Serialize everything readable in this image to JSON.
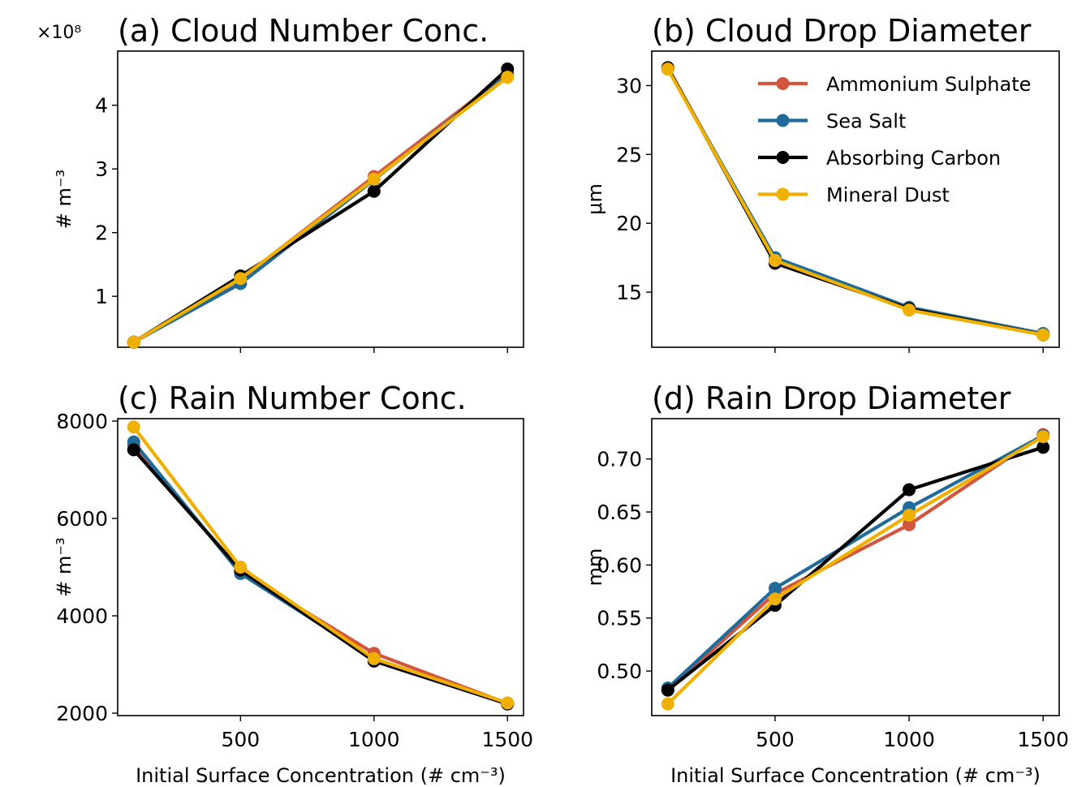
{
  "figure": {
    "colors": {
      "Ammonium Sulphate": "#d2553f",
      "Sea Salt": "#1f6b9b",
      "Absorbing Carbon": "#000000",
      "Mineral Dust": "#f0b000"
    },
    "xlabel": "Initial Surface Concentration (# cm⁻³)"
  },
  "chart_data": [
    {
      "type": "line",
      "title": "(a) Cloud Number Conc.",
      "xlabel": "",
      "ylabel": "# m⁻³",
      "multiplier_label": "×10⁸",
      "x": [
        100,
        500,
        1000,
        1500
      ],
      "xticks": [
        "500",
        "1000",
        "1500"
      ],
      "xlim": [
        40,
        1560
      ],
      "ylim": [
        0.2,
        4.85
      ],
      "yticks": [
        1,
        2,
        3,
        4
      ],
      "ytick_labels": [
        "1",
        "2",
        "3",
        "4"
      ],
      "legend": false,
      "series": [
        {
          "name": "Ammonium Sulphate",
          "values": [
            0.28,
            1.27,
            2.88,
            4.5
          ]
        },
        {
          "name": "Sea Salt",
          "values": [
            0.28,
            1.2,
            2.83,
            4.47
          ]
        },
        {
          "name": "Absorbing Carbon",
          "values": [
            0.28,
            1.32,
            2.65,
            4.57
          ]
        },
        {
          "name": "Mineral Dust",
          "values": [
            0.28,
            1.28,
            2.84,
            4.44
          ]
        }
      ]
    },
    {
      "type": "line",
      "title": "(b) Cloud Drop Diameter",
      "xlabel": "",
      "ylabel": "μm",
      "x": [
        100,
        500,
        1000,
        1500
      ],
      "xticks": [
        "500",
        "1000",
        "1500"
      ],
      "xlim": [
        40,
        1560
      ],
      "ylim": [
        11,
        32.5
      ],
      "yticks": [
        15,
        20,
        25,
        30
      ],
      "ytick_labels": [
        "15",
        "20",
        "25",
        "30"
      ],
      "legend": true,
      "legend_position": "top-right",
      "series": [
        {
          "name": "Ammonium Sulphate",
          "values": [
            31.3,
            17.3,
            13.8,
            11.9
          ]
        },
        {
          "name": "Sea Salt",
          "values": [
            31.2,
            17.5,
            13.9,
            12.0
          ]
        },
        {
          "name": "Absorbing Carbon",
          "values": [
            31.3,
            17.1,
            13.8,
            11.9
          ]
        },
        {
          "name": "Mineral Dust",
          "values": [
            31.2,
            17.3,
            13.7,
            11.9
          ]
        }
      ]
    },
    {
      "type": "line",
      "title": "(c) Rain Number Conc.",
      "xlabel": "Initial Surface Concentration (# cm⁻³)",
      "ylabel": "# m⁻³",
      "x": [
        100,
        500,
        1000,
        1500
      ],
      "xticks": [
        "500",
        "1000",
        "1500"
      ],
      "xlim": [
        40,
        1560
      ],
      "ylim": [
        1950,
        8050
      ],
      "yticks": [
        2000,
        4000,
        6000,
        8000
      ],
      "ytick_labels": [
        "2000",
        "4000",
        "6000",
        "8000"
      ],
      "legend": false,
      "series": [
        {
          "name": "Ammonium Sulphate",
          "values": [
            7500,
            4900,
            3230,
            2200
          ]
        },
        {
          "name": "Sea Salt",
          "values": [
            7570,
            4870,
            3120,
            2190
          ]
        },
        {
          "name": "Absorbing Carbon",
          "values": [
            7410,
            4940,
            3070,
            2190
          ]
        },
        {
          "name": "Mineral Dust",
          "values": [
            7880,
            5000,
            3120,
            2210
          ]
        }
      ]
    },
    {
      "type": "line",
      "title": "(d) Rain Drop Diameter",
      "xlabel": "Initial Surface Concentration (# cm⁻³)",
      "ylabel": "mm",
      "x": [
        100,
        500,
        1000,
        1500
      ],
      "xticks": [
        "500",
        "1000",
        "1500"
      ],
      "xlim": [
        40,
        1560
      ],
      "ylim": [
        0.458,
        0.738
      ],
      "yticks": [
        0.5,
        0.55,
        0.6,
        0.65,
        0.7
      ],
      "ytick_labels": [
        "0.50",
        "0.55",
        "0.60",
        "0.65",
        "0.70"
      ],
      "legend": false,
      "series": [
        {
          "name": "Ammonium Sulphate",
          "values": [
            0.482,
            0.573,
            0.638,
            0.723
          ]
        },
        {
          "name": "Sea Salt",
          "values": [
            0.484,
            0.578,
            0.654,
            0.722
          ]
        },
        {
          "name": "Absorbing Carbon",
          "values": [
            0.482,
            0.562,
            0.671,
            0.711
          ]
        },
        {
          "name": "Mineral Dust",
          "values": [
            0.469,
            0.568,
            0.647,
            0.721
          ]
        }
      ]
    }
  ]
}
